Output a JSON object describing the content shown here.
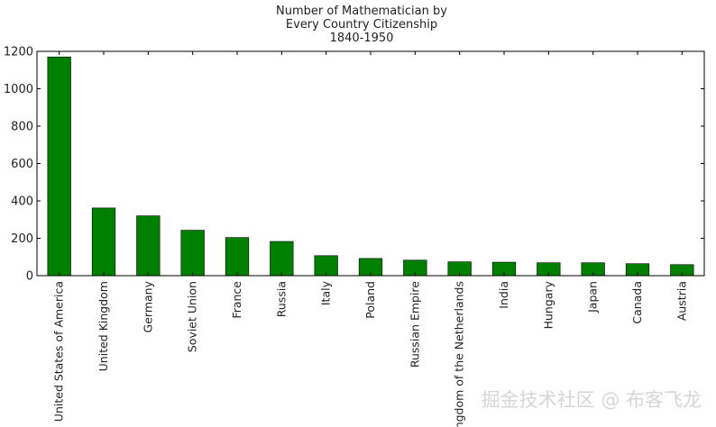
{
  "chart_data": {
    "type": "bar",
    "title_lines": [
      "Number of Mathematician by",
      "Every Country Citizenship",
      "1840-1950"
    ],
    "xlabel": "",
    "ylabel": "",
    "categories": [
      "United States of America",
      "United Kingdom",
      "Germany",
      "Soviet Union",
      "France",
      "Russia",
      "Italy",
      "Poland",
      "Russian Empire",
      "Kingdom of the Netherlands",
      "India",
      "Hungary",
      "Japan",
      "Canada",
      "Austria"
    ],
    "values": [
      1170,
      362,
      320,
      243,
      204,
      183,
      107,
      92,
      83,
      74,
      72,
      69,
      69,
      64,
      59
    ],
    "ylim": [
      0,
      1200
    ],
    "yticks": [
      0,
      200,
      400,
      600,
      800,
      1000,
      1200
    ],
    "bar_color": "#008000",
    "grid": false,
    "legend": "none"
  },
  "watermark": "掘金技术社区 @ 布客飞龙"
}
